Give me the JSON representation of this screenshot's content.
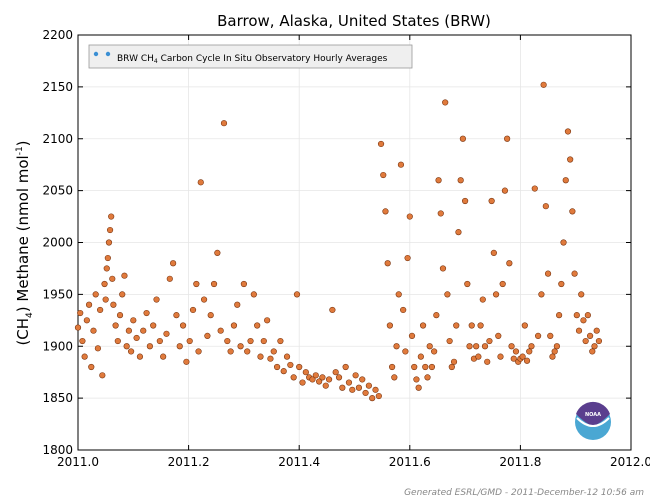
{
  "chart_data": {
    "type": "scatter",
    "title": "Barrow, Alaska, United States (BRW)",
    "ylabel_parts": {
      "prefix": "(CH",
      "sub": "4",
      "mid": ") Methane (nmol mol",
      "sup": "-1",
      "suffix": ")"
    },
    "xlim": [
      2011.0,
      2012.0
    ],
    "ylim": [
      1800,
      2200
    ],
    "xticks": [
      "2011.0",
      "2011.2",
      "2011.4",
      "2011.6",
      "2011.8",
      "2012.0"
    ],
    "yticks": [
      "1800",
      "1850",
      "1900",
      "1950",
      "2000",
      "2050",
      "2100",
      "2150",
      "2200"
    ],
    "legend": {
      "position": "top-left",
      "parts": {
        "prefix": "BRW CH",
        "sub": "4",
        "suffix": " Carbon Cycle In Situ Observatory Hourly Averages"
      }
    },
    "series": [
      {
        "name": "BRW CH4 Carbon Cycle In Situ Observatory Hourly Averages",
        "color": "#e07a3c",
        "edge_color": "#7a3510",
        "points": [
          [
            2011.0,
            1918
          ],
          [
            2011.004,
            1932
          ],
          [
            2011.008,
            1905
          ],
          [
            2011.012,
            1890
          ],
          [
            2011.016,
            1925
          ],
          [
            2011.02,
            1940
          ],
          [
            2011.024,
            1880
          ],
          [
            2011.028,
            1915
          ],
          [
            2011.032,
            1950
          ],
          [
            2011.036,
            1898
          ],
          [
            2011.04,
            1935
          ],
          [
            2011.044,
            1872
          ],
          [
            2011.048,
            1960
          ],
          [
            2011.05,
            1945
          ],
          [
            2011.052,
            1975
          ],
          [
            2011.054,
            1985
          ],
          [
            2011.056,
            2000
          ],
          [
            2011.058,
            2012
          ],
          [
            2011.06,
            2025
          ],
          [
            2011.062,
            1965
          ],
          [
            2011.064,
            1940
          ],
          [
            2011.068,
            1920
          ],
          [
            2011.072,
            1905
          ],
          [
            2011.076,
            1930
          ],
          [
            2011.08,
            1950
          ],
          [
            2011.084,
            1968
          ],
          [
            2011.088,
            1900
          ],
          [
            2011.092,
            1915
          ],
          [
            2011.096,
            1895
          ],
          [
            2011.1,
            1925
          ],
          [
            2011.106,
            1908
          ],
          [
            2011.112,
            1890
          ],
          [
            2011.118,
            1915
          ],
          [
            2011.124,
            1932
          ],
          [
            2011.13,
            1900
          ],
          [
            2011.136,
            1920
          ],
          [
            2011.142,
            1945
          ],
          [
            2011.148,
            1905
          ],
          [
            2011.154,
            1890
          ],
          [
            2011.16,
            1912
          ],
          [
            2011.166,
            1965
          ],
          [
            2011.172,
            1980
          ],
          [
            2011.178,
            1930
          ],
          [
            2011.184,
            1900
          ],
          [
            2011.19,
            1920
          ],
          [
            2011.196,
            1885
          ],
          [
            2011.202,
            1905
          ],
          [
            2011.208,
            1935
          ],
          [
            2011.214,
            1960
          ],
          [
            2011.218,
            1895
          ],
          [
            2011.222,
            2058
          ],
          [
            2011.228,
            1945
          ],
          [
            2011.234,
            1910
          ],
          [
            2011.24,
            1930
          ],
          [
            2011.246,
            1960
          ],
          [
            2011.252,
            1990
          ],
          [
            2011.258,
            1915
          ],
          [
            2011.264,
            2115
          ],
          [
            2011.27,
            1905
          ],
          [
            2011.276,
            1895
          ],
          [
            2011.282,
            1920
          ],
          [
            2011.288,
            1940
          ],
          [
            2011.294,
            1900
          ],
          [
            2011.3,
            1960
          ],
          [
            2011.306,
            1895
          ],
          [
            2011.312,
            1905
          ],
          [
            2011.318,
            1950
          ],
          [
            2011.324,
            1920
          ],
          [
            2011.33,
            1890
          ],
          [
            2011.336,
            1905
          ],
          [
            2011.342,
            1925
          ],
          [
            2011.348,
            1888
          ],
          [
            2011.354,
            1895
          ],
          [
            2011.36,
            1880
          ],
          [
            2011.366,
            1905
          ],
          [
            2011.372,
            1876
          ],
          [
            2011.378,
            1890
          ],
          [
            2011.384,
            1882
          ],
          [
            2011.39,
            1870
          ],
          [
            2011.396,
            1950
          ],
          [
            2011.4,
            1880
          ],
          [
            2011.406,
            1865
          ],
          [
            2011.412,
            1875
          ],
          [
            2011.418,
            1870
          ],
          [
            2011.424,
            1868
          ],
          [
            2011.43,
            1872
          ],
          [
            2011.436,
            1866
          ],
          [
            2011.442,
            1870
          ],
          [
            2011.448,
            1862
          ],
          [
            2011.454,
            1868
          ],
          [
            2011.46,
            1935
          ],
          [
            2011.466,
            1875
          ],
          [
            2011.472,
            1870
          ],
          [
            2011.478,
            1860
          ],
          [
            2011.484,
            1880
          ],
          [
            2011.49,
            1865
          ],
          [
            2011.496,
            1858
          ],
          [
            2011.502,
            1872
          ],
          [
            2011.508,
            1860
          ],
          [
            2011.514,
            1868
          ],
          [
            2011.52,
            1855
          ],
          [
            2011.526,
            1862
          ],
          [
            2011.532,
            1850
          ],
          [
            2011.538,
            1858
          ],
          [
            2011.544,
            1852
          ],
          [
            2011.548,
            2095
          ],
          [
            2011.552,
            2065
          ],
          [
            2011.556,
            2030
          ],
          [
            2011.56,
            1980
          ],
          [
            2011.564,
            1920
          ],
          [
            2011.568,
            1880
          ],
          [
            2011.572,
            1870
          ],
          [
            2011.576,
            1900
          ],
          [
            2011.58,
            1950
          ],
          [
            2011.584,
            2075
          ],
          [
            2011.588,
            1935
          ],
          [
            2011.592,
            1895
          ],
          [
            2011.596,
            1985
          ],
          [
            2011.6,
            2025
          ],
          [
            2011.604,
            1910
          ],
          [
            2011.608,
            1880
          ],
          [
            2011.612,
            1868
          ],
          [
            2011.616,
            1860
          ],
          [
            2011.62,
            1890
          ],
          [
            2011.624,
            1920
          ],
          [
            2011.628,
            1880
          ],
          [
            2011.632,
            1870
          ],
          [
            2011.636,
            1900
          ],
          [
            2011.64,
            1880
          ],
          [
            2011.644,
            1895
          ],
          [
            2011.648,
            1930
          ],
          [
            2011.652,
            2060
          ],
          [
            2011.656,
            2028
          ],
          [
            2011.66,
            1975
          ],
          [
            2011.664,
            2135
          ],
          [
            2011.668,
            1950
          ],
          [
            2011.672,
            1905
          ],
          [
            2011.676,
            1880
          ],
          [
            2011.68,
            1885
          ],
          [
            2011.684,
            1920
          ],
          [
            2011.688,
            2010
          ],
          [
            2011.692,
            2060
          ],
          [
            2011.696,
            2100
          ],
          [
            2011.7,
            2040
          ],
          [
            2011.704,
            1960
          ],
          [
            2011.708,
            1900
          ],
          [
            2011.712,
            1920
          ],
          [
            2011.716,
            1888
          ],
          [
            2011.72,
            1900
          ],
          [
            2011.724,
            1890
          ],
          [
            2011.728,
            1920
          ],
          [
            2011.732,
            1945
          ],
          [
            2011.736,
            1900
          ],
          [
            2011.74,
            1885
          ],
          [
            2011.744,
            1905
          ],
          [
            2011.748,
            2040
          ],
          [
            2011.752,
            1990
          ],
          [
            2011.756,
            1950
          ],
          [
            2011.76,
            1910
          ],
          [
            2011.764,
            1890
          ],
          [
            2011.768,
            1960
          ],
          [
            2011.772,
            2050
          ],
          [
            2011.776,
            2100
          ],
          [
            2011.78,
            1980
          ],
          [
            2011.784,
            1900
          ],
          [
            2011.788,
            1888
          ],
          [
            2011.792,
            1895
          ],
          [
            2011.796,
            1885
          ],
          [
            2011.8,
            1888
          ],
          [
            2011.804,
            1890
          ],
          [
            2011.808,
            1920
          ],
          [
            2011.812,
            1886
          ],
          [
            2011.816,
            1895
          ],
          [
            2011.82,
            1900
          ],
          [
            2011.826,
            2052
          ],
          [
            2011.832,
            1910
          ],
          [
            2011.838,
            1950
          ],
          [
            2011.842,
            2152
          ],
          [
            2011.846,
            2035
          ],
          [
            2011.85,
            1970
          ],
          [
            2011.854,
            1910
          ],
          [
            2011.858,
            1890
          ],
          [
            2011.862,
            1895
          ],
          [
            2011.866,
            1900
          ],
          [
            2011.87,
            1930
          ],
          [
            2011.874,
            1960
          ],
          [
            2011.878,
            2000
          ],
          [
            2011.882,
            2060
          ],
          [
            2011.886,
            2107
          ],
          [
            2011.89,
            2080
          ],
          [
            2011.894,
            2030
          ],
          [
            2011.898,
            1970
          ],
          [
            2011.902,
            1930
          ],
          [
            2011.906,
            1915
          ],
          [
            2011.91,
            1950
          ],
          [
            2011.914,
            1925
          ],
          [
            2011.918,
            1905
          ],
          [
            2011.922,
            1930
          ],
          [
            2011.926,
            1910
          ],
          [
            2011.93,
            1895
          ],
          [
            2011.934,
            1900
          ],
          [
            2011.938,
            1915
          ],
          [
            2011.942,
            1905
          ]
        ]
      }
    ]
  },
  "footer": "Generated ESRL/GMD - 2011-December-12 10:56 am",
  "logo_text": "NOAA"
}
